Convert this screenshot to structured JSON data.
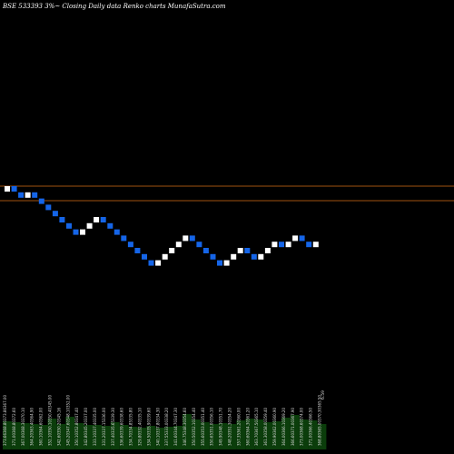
{
  "header": {
    "title": "BSE 533393 3%~   Closing Daily data  Renko   charts MunafaSutra.com"
  },
  "colors": {
    "background": "#000000",
    "up_brick": "#ffffff",
    "down_brick": "#1565e8",
    "reference_line": "#a0520f",
    "volume_bar": "#0b3d0b",
    "volume_label": "#dddddd"
  },
  "chart_data": {
    "type": "renko",
    "reference_lines": [
      "upper",
      "lower"
    ],
    "bricks": [
      "up",
      "down",
      "down",
      "up",
      "down",
      "down",
      "down",
      "down",
      "down",
      "down",
      "down",
      "up",
      "up",
      "up",
      "down",
      "down",
      "down",
      "down",
      "down",
      "down",
      "down",
      "down",
      "up",
      "up",
      "up",
      "up",
      "up",
      "down",
      "down",
      "down",
      "down",
      "down",
      "up",
      "up",
      "up",
      "down",
      "down",
      "up",
      "up",
      "up",
      "down",
      "up",
      "up",
      "down",
      "down",
      "up"
    ],
    "volume_bars": [
      {
        "labels": [
          "373.66",
          "368.80",
          "373.86",
          "367.00"
        ],
        "value": 3.1
      },
      {
        "labels": [
          "371.00",
          "368.80",
          "372.60"
        ],
        "value": 3.0
      },
      {
        "labels": [
          "367.00",
          "368.30",
          "370.10"
        ],
        "value": 2.9
      },
      {
        "labels": [
          "364.20",
          "363.40",
          "364.90"
        ],
        "value": 2.8
      },
      {
        "labels": [
          "360.10",
          "364.60",
          "362.00"
        ],
        "value": 2.7
      },
      {
        "labels": [
          "352.10",
          "350.10",
          "350.40",
          "345.00"
        ],
        "value": 3.4
      },
      {
        "labels": [
          "342.60",
          "350.20",
          "345.16"
        ],
        "value": 2.8
      },
      {
        "labels": [
          "345.20",
          "347.60",
          "348.10",
          "352.00"
        ],
        "value": 3.6
      },
      {
        "labels": [
          "350.10",
          "352.80",
          "347.40"
        ],
        "value": 2.9
      },
      {
        "labels": [
          "342.80",
          "345.20",
          "337.00"
        ],
        "value": 2.7
      },
      {
        "labels": [
          "333.10",
          "337.40",
          "335.00"
        ],
        "value": 2.7
      },
      {
        "labels": [
          "331.20",
          "337.15",
          "336.00"
        ],
        "value": 2.6
      },
      {
        "labels": [
          "337.40",
          "335.65",
          "339.30"
        ],
        "value": 3.0
      },
      {
        "labels": [
          "336.60",
          "339.60",
          "338.60"
        ],
        "value": 2.7
      },
      {
        "labels": [
          "334.70",
          "334.85",
          "335.80"
        ],
        "value": 2.5
      },
      {
        "labels": [
          "329.80",
          "332.40",
          "335.10"
        ],
        "value": 2.4
      },
      {
        "labels": [
          "334.50",
          "335.90",
          "339.60"
        ],
        "value": 2.6
      },
      {
        "labels": [
          "340.10",
          "337.80",
          "334.30"
        ],
        "value": 2.4
      },
      {
        "labels": [
          "337.55",
          "333.00",
          "338.20"
        ],
        "value": 2.5
      },
      {
        "labels": [
          "341.60",
          "344.70",
          "347.30"
        ],
        "value": 2.6
      },
      {
        "labels": [
          "346.75",
          "348.30",
          "354.60"
        ],
        "value": 3.9
      },
      {
        "labels": [
          "350.50",
          "352.10",
          "354.40"
        ],
        "value": 3.3
      },
      {
        "labels": [
          "355.60",
          "353.00",
          "351.40"
        ],
        "value": 3.0
      },
      {
        "labels": [
          "350.65",
          "351.00",
          "356.10"
        ],
        "value": 2.8
      },
      {
        "labels": [
          "349.90",
          "348.10",
          "351.70"
        ],
        "value": 2.9
      },
      {
        "labels": [
          "348.20",
          "351.30",
          "354.20"
        ],
        "value": 2.8
      },
      {
        "labels": [
          "357.35",
          "361.20",
          "360.00"
        ],
        "value": 3.2
      },
      {
        "labels": [
          "360.60",
          "364.30",
          "361.20"
        ],
        "value": 3.4
      },
      {
        "labels": [
          "363.70",
          "367.50",
          "365.10"
        ],
        "value": 3.3
      },
      {
        "labels": [
          "361.30",
          "358.00",
          "359.40"
        ],
        "value": 3.0
      },
      {
        "labels": [
          "359.90",
          "362.00",
          "360.90"
        ],
        "value": 3.1
      },
      {
        "labels": [
          "364.00",
          "366.10",
          "369.20"
        ],
        "value": 3.5
      },
      {
        "labels": [
          "366.60",
          "371.00",
          "367.90"
        ],
        "value": 3.8
      },
      {
        "labels": [
          "373.00",
          "368.60",
          "374.00"
        ],
        "value": 3.3
      },
      {
        "labels": [
          "371.00",
          "366.40",
          "366.50"
        ],
        "value": 3.2
      },
      {
        "labels": [
          "368.80",
          "365.00",
          "370.30",
          "365.50"
        ],
        "value": 2.8
      }
    ],
    "last_label": "6.59"
  }
}
